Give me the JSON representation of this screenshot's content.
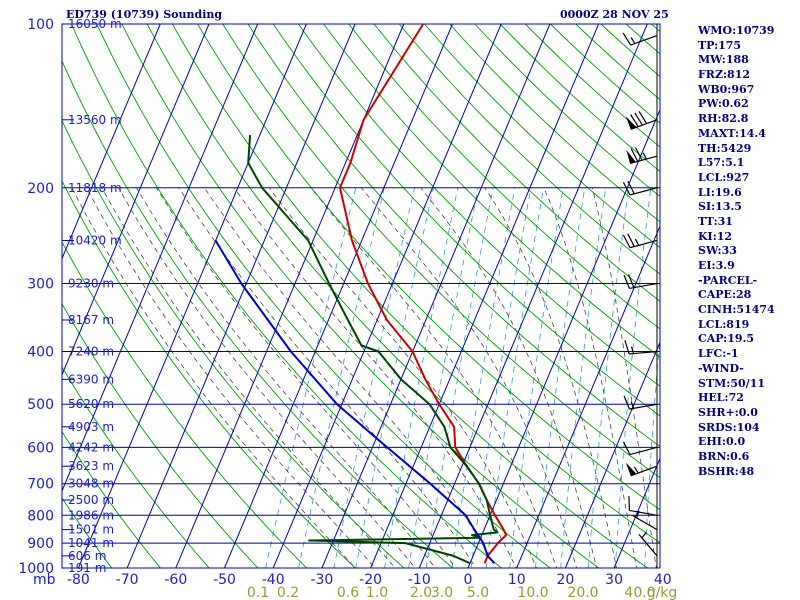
{
  "header": {
    "title": "ED739 (10739) Sounding",
    "datetime": "0000Z 28 NOV 25"
  },
  "params": [
    "WMO:10739",
    "TP:175",
    "MW:188",
    "FRZ:812",
    "WB0:967",
    "PW:0.62",
    "RH:82.8",
    "MAXT:14.4",
    "TH:5429",
    "L57:5.1",
    "LCL:927",
    "LI:19.6",
    "SI:13.5",
    "TT:31",
    "KI:12",
    "SW:33",
    "EI:3.9",
    "-PARCEL-",
    "CAPE:28",
    "CINH:51474",
    "LCL:819",
    "CAP:19.5",
    "LFC:-1",
    "-WIND-",
    "STM:50/11",
    "HEL:72",
    "SHR+:0.0",
    "SRDS:104",
    "EHI:0.0",
    "BRN:0.6",
    "BSHR:48"
  ],
  "colors": {
    "grid": "#0000aa",
    "dry_adiabat": "#00a000",
    "moist_adiabat": "#444444",
    "mixing_ratio": "#3399cc",
    "temperature": "#cc0000",
    "dewpoint": "#004400",
    "parcel": "#0000cc",
    "labels": "#1c1ccc",
    "mixing_ratio_labels": "#999933",
    "header": "#000080",
    "barbs": "#000000"
  },
  "chart_data": {
    "type": "line",
    "pressure_axis_unit": "mb",
    "pressure_labels": [
      "100",
      "200",
      "300",
      "400",
      "500",
      "600",
      "700",
      "800",
      "900",
      "1000"
    ],
    "pressure_range": [
      100,
      1000
    ],
    "temperature_labels": [
      "-80",
      "-70",
      "-60",
      "-50",
      "-40",
      "-30",
      "-20",
      "-10",
      "0",
      "10",
      "20",
      "30",
      "40"
    ],
    "temperature_range": [
      -80,
      40
    ],
    "height_labels": [
      {
        "p": 100,
        "text": "16050 m"
      },
      {
        "p": 150,
        "text": "13560 m"
      },
      {
        "p": 200,
        "text": "11818 m"
      },
      {
        "p": 250,
        "text": "10420 m"
      },
      {
        "p": 300,
        "text": "9230 m"
      },
      {
        "p": 350,
        "text": "8167 m"
      },
      {
        "p": 400,
        "text": "7240 m"
      },
      {
        "p": 450,
        "text": "6390 m"
      },
      {
        "p": 500,
        "text": "5620 m"
      },
      {
        "p": 550,
        "text": "4903 m"
      },
      {
        "p": 600,
        "text": "4242 m"
      },
      {
        "p": 650,
        "text": "3623 m"
      },
      {
        "p": 700,
        "text": "3048 m"
      },
      {
        "p": 750,
        "text": "2500 m"
      },
      {
        "p": 800,
        "text": "1986 m"
      },
      {
        "p": 850,
        "text": "1501 m"
      },
      {
        "p": 900,
        "text": "1041 m"
      },
      {
        "p": 950,
        "text": "606 m"
      },
      {
        "p": 1000,
        "text": "191 m"
      }
    ],
    "mixing_ratio_labels": [
      "0.1",
      "0.2",
      "0.6",
      "1.0",
      "2.0",
      "3.0",
      "5.0",
      "10.0",
      "20.0",
      "40.0"
    ],
    "mixing_ratio_unit": "g/kg",
    "series": [
      {
        "key": "temperature",
        "points": [
          [
            100,
            -56
          ],
          [
            150,
            -60
          ],
          [
            180,
            -59
          ],
          [
            200,
            -59
          ],
          [
            250,
            -52
          ],
          [
            300,
            -45
          ],
          [
            350,
            -38
          ],
          [
            400,
            -30
          ],
          [
            450,
            -25
          ],
          [
            500,
            -20
          ],
          [
            550,
            -15
          ],
          [
            600,
            -13
          ],
          [
            650,
            -9
          ],
          [
            700,
            -5
          ],
          [
            750,
            -2
          ],
          [
            800,
            1
          ],
          [
            850,
            4
          ],
          [
            870,
            5
          ],
          [
            900,
            4
          ],
          [
            950,
            3
          ],
          [
            980,
            3
          ]
        ]
      },
      {
        "key": "dewpoint",
        "points": [
          [
            160,
            -82
          ],
          [
            180,
            -80
          ],
          [
            200,
            -75
          ],
          [
            250,
            -61
          ],
          [
            300,
            -53
          ],
          [
            350,
            -46
          ],
          [
            390,
            -41
          ],
          [
            400,
            -37
          ],
          [
            450,
            -30
          ],
          [
            500,
            -22
          ],
          [
            550,
            -17
          ],
          [
            600,
            -14
          ],
          [
            650,
            -9
          ],
          [
            700,
            -5
          ],
          [
            750,
            -2
          ],
          [
            800,
            0
          ],
          [
            850,
            2
          ],
          [
            860,
            3
          ],
          [
            870,
            -2
          ],
          [
            880,
            0
          ],
          [
            890,
            -35
          ],
          [
            900,
            -15
          ],
          [
            950,
            -4
          ],
          [
            980,
            0
          ]
        ]
      },
      {
        "key": "parcel",
        "points": [
          [
            250,
            -80
          ],
          [
            300,
            -71
          ],
          [
            400,
            -55
          ],
          [
            500,
            -41
          ],
          [
            600,
            -27
          ],
          [
            700,
            -15
          ],
          [
            800,
            -5
          ],
          [
            850,
            -2
          ],
          [
            900,
            1
          ],
          [
            950,
            3
          ],
          [
            980,
            5
          ]
        ]
      }
    ],
    "wind_barbs": [
      {
        "p": 105,
        "dir": 250,
        "speed": 15
      },
      {
        "p": 150,
        "dir": 250,
        "speed": 80
      },
      {
        "p": 175,
        "dir": 255,
        "speed": 75
      },
      {
        "p": 200,
        "dir": 255,
        "speed": 20
      },
      {
        "p": 250,
        "dir": 255,
        "speed": 25
      },
      {
        "p": 300,
        "dir": 260,
        "speed": 20
      },
      {
        "p": 400,
        "dir": 265,
        "speed": 15
      },
      {
        "p": 500,
        "dir": 260,
        "speed": 15
      },
      {
        "p": 600,
        "dir": 255,
        "speed": 10
      },
      {
        "p": 650,
        "dir": 250,
        "speed": 55
      },
      {
        "p": 800,
        "dir": 280,
        "speed": 10
      },
      {
        "p": 850,
        "dir": 300,
        "speed": 5
      },
      {
        "p": 950,
        "dir": 320,
        "speed": 5
      }
    ]
  }
}
